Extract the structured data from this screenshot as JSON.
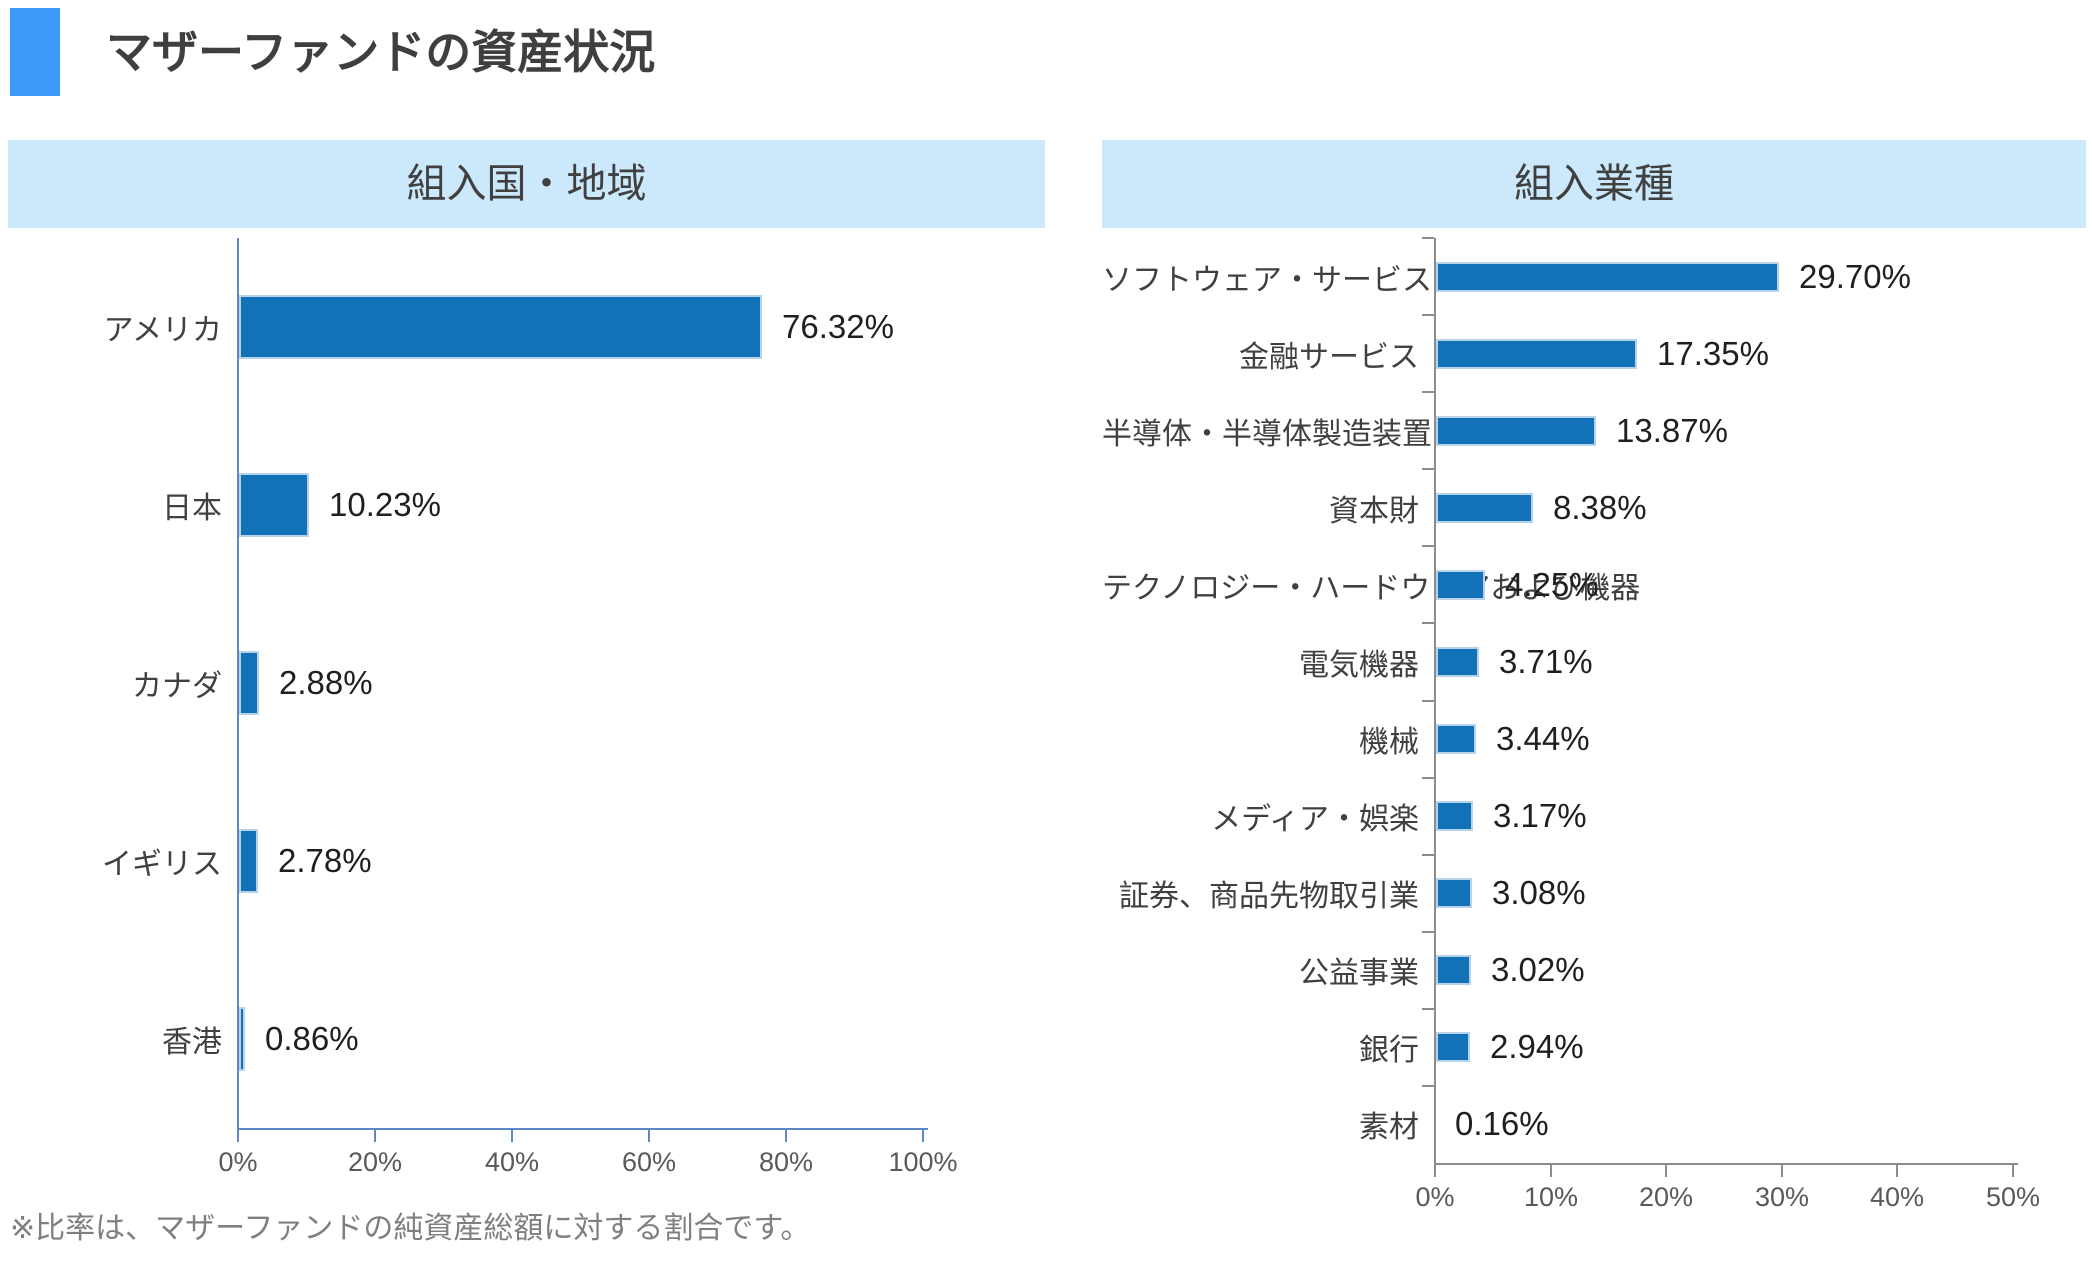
{
  "header": {
    "title": "マザーファンドの資産状況"
  },
  "footnote": "※比率は、マザーファンドの純資産総額に対する割合です。",
  "colors": {
    "accent_square": "#3D9AF8",
    "panel_header_bg": "#CCE9FC",
    "bar_fill": "#1371B7",
    "bar_edge": "#B7D3EC",
    "left_axis": "#5C88C6",
    "right_axis": "#8C8C8C",
    "text": "#404040",
    "tick_label": "#595959",
    "footnote": "#7F7F7F"
  },
  "chart_data": [
    {
      "type": "bar",
      "orientation": "horizontal",
      "title": "組入国・地域",
      "categories": [
        "アメリカ",
        "日本",
        "カナダ",
        "イギリス",
        "香港"
      ],
      "values": [
        76.32,
        10.23,
        2.88,
        2.78,
        0.86
      ],
      "labels": [
        "76.32%",
        "10.23%",
        "2.88%",
        "2.78%",
        "0.86%"
      ],
      "xlim": [
        0,
        100
      ],
      "xticks": [
        "0%",
        "20%",
        "40%",
        "60%",
        "80%",
        "100%"
      ],
      "grid": false,
      "legend": "none",
      "value_labels": "outside-end"
    },
    {
      "type": "bar",
      "orientation": "horizontal",
      "title": "組入業種",
      "categories": [
        "ソフトウェア・サービス",
        "金融サービス",
        "半導体・半導体製造装置",
        "資本財",
        "テクノロジー・ハードウェアおよび機器",
        "電気機器",
        "機械",
        "メディア・娯楽",
        "証券、商品先物取引業",
        "公益事業",
        "銀行",
        "素材"
      ],
      "values": [
        29.7,
        17.35,
        13.87,
        8.38,
        4.25,
        3.71,
        3.44,
        3.17,
        3.08,
        3.02,
        2.94,
        0.16
      ],
      "labels": [
        "29.70%",
        "17.35%",
        "13.87%",
        "8.38%",
        "4.25%",
        "3.71%",
        "3.44%",
        "3.17%",
        "3.08%",
        "3.02%",
        "2.94%",
        "0.16%"
      ],
      "xlim": [
        0,
        50
      ],
      "xticks": [
        "0%",
        "10%",
        "20%",
        "30%",
        "40%",
        "50%"
      ],
      "grid": false,
      "legend": "none",
      "value_labels": "outside-end"
    }
  ]
}
